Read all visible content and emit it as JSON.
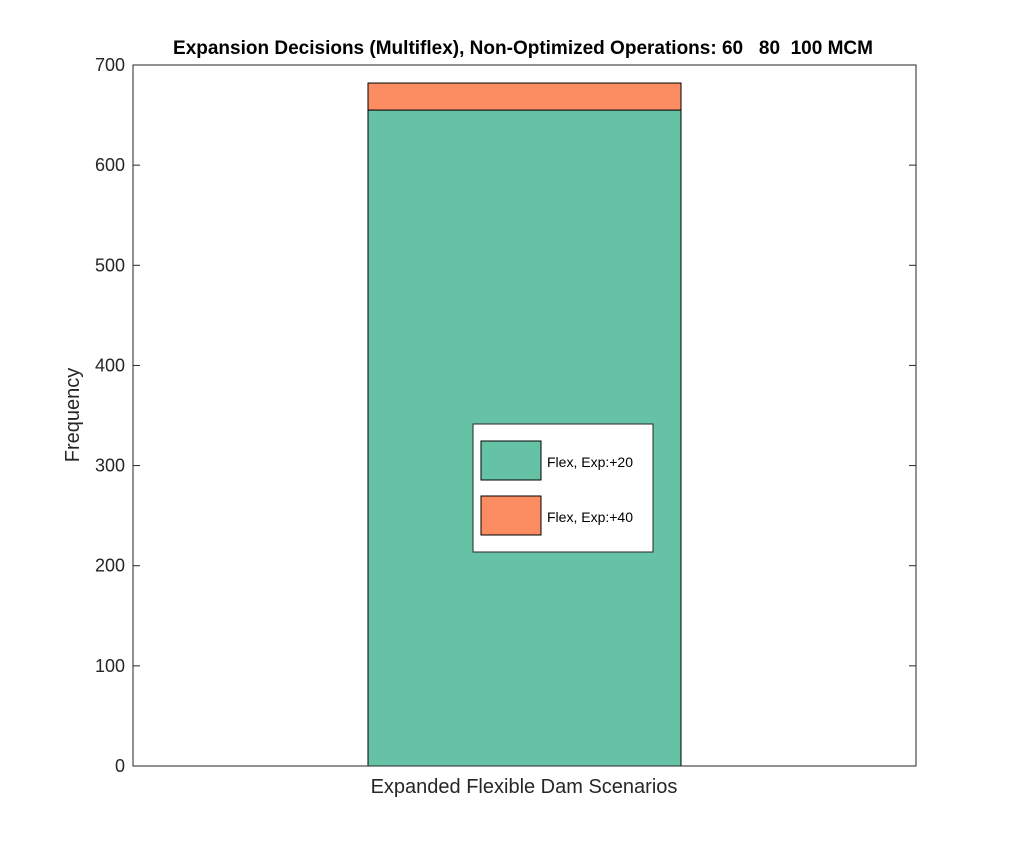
{
  "chart_data": {
    "type": "bar",
    "stacked": true,
    "title": "Expansion Decisions (Multiflex), Non-Optimized Operations: 60   80  100 MCM",
    "xlabel": "Expanded Flexible Dam Scenarios",
    "ylabel": "Frequency",
    "categories": [
      ""
    ],
    "ylim": [
      0,
      700
    ],
    "yticks": [
      0,
      100,
      200,
      300,
      400,
      500,
      600,
      700
    ],
    "grid": false,
    "legend_position": "center",
    "series": [
      {
        "name": "Flex, Exp:+20",
        "values": [
          655
        ],
        "color": "#66c2a5"
      },
      {
        "name": "Flex, Exp:+40",
        "values": [
          27
        ],
        "color": "#fc8d62"
      }
    ]
  }
}
